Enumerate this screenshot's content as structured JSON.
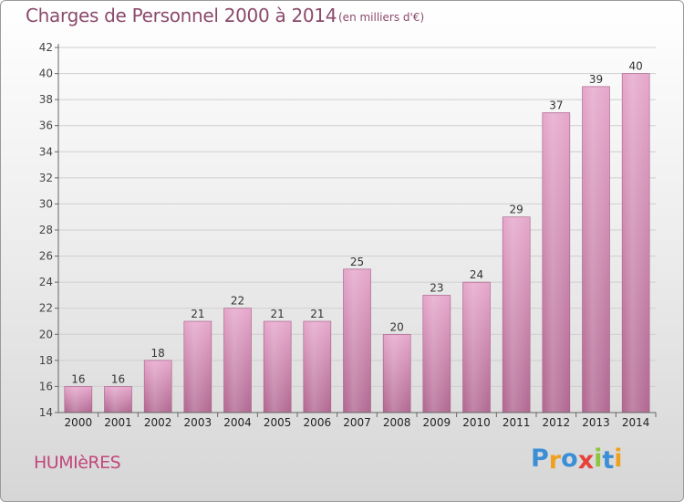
{
  "chart_data": {
    "type": "bar",
    "title": "Charges de Personnel 2000 à 2014",
    "subtitle": "(en milliers d'€)",
    "categories": [
      "2000",
      "2001",
      "2002",
      "2003",
      "2004",
      "2005",
      "2006",
      "2007",
      "2008",
      "2009",
      "2010",
      "2011",
      "2012",
      "2013",
      "2014"
    ],
    "values": [
      16,
      16,
      18,
      21,
      22,
      21,
      21,
      25,
      20,
      23,
      24,
      29,
      37,
      39,
      40
    ],
    "y_ticks": [
      14,
      16,
      18,
      20,
      22,
      24,
      26,
      28,
      30,
      32,
      34,
      36,
      38,
      40,
      42
    ],
    "ylim": [
      14,
      42
    ],
    "xlabel": "",
    "ylabel": "",
    "grid": true,
    "bar_color_top": "#e6a8cc",
    "bar_color_bottom": "#b26a93"
  },
  "footer": {
    "commune": "HUMIèRES",
    "brand": "Proxiti",
    "brand_letters": [
      {
        "char": "P",
        "color": "#3b8fd6"
      },
      {
        "char": "r",
        "color": "#f0a020"
      },
      {
        "char": "o",
        "color": "#3b8fd6"
      },
      {
        "char": "x",
        "color": "#e8413c"
      },
      {
        "char": "i",
        "color": "#8cc63e"
      },
      {
        "char": "t",
        "color": "#3b8fd6"
      },
      {
        "char": "i",
        "color": "#f0a020"
      }
    ]
  }
}
